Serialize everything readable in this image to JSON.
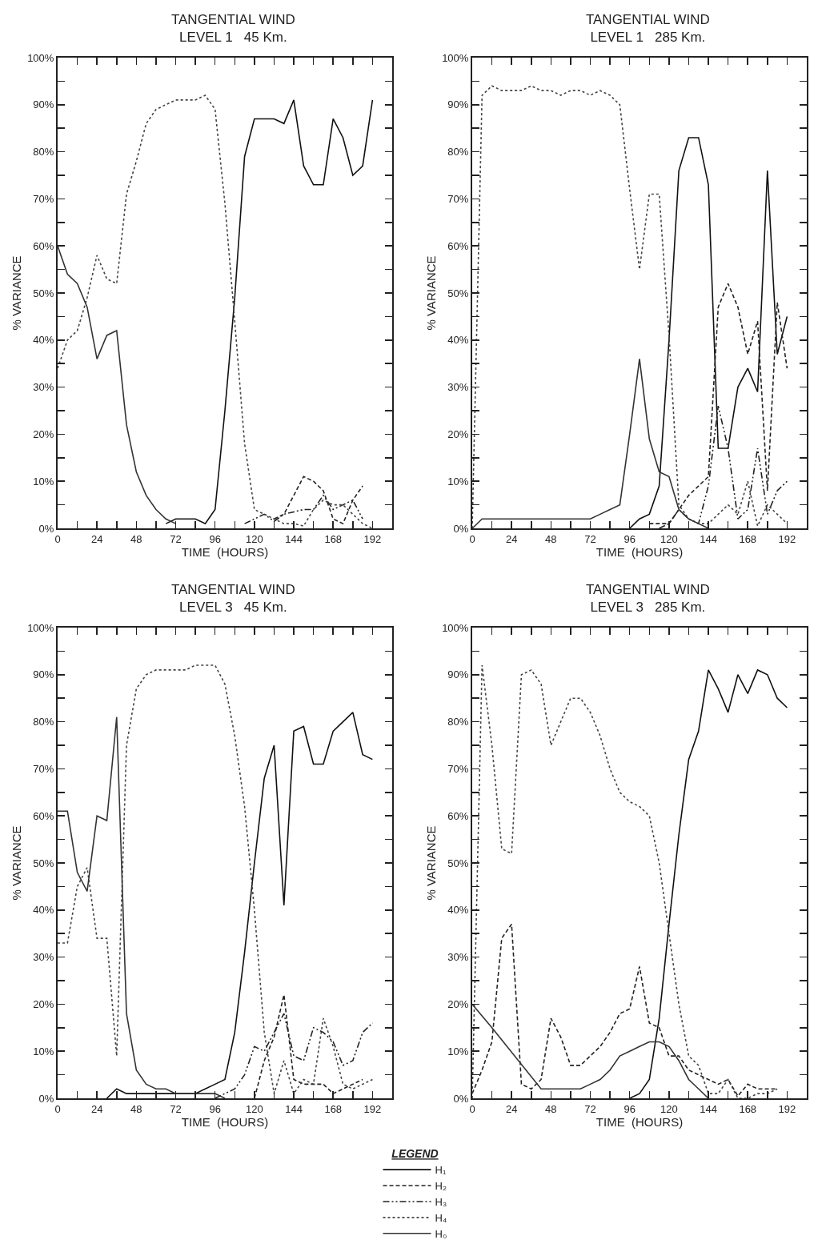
{
  "chart_data": [
    {
      "type": "line",
      "title": "TANGENTIAL WIND",
      "subtitle": "LEVEL 1   45 Km.",
      "xlabel": "TIME  (HOURS)",
      "ylabel": "% VARIANCE",
      "xlim": [
        0,
        204
      ],
      "ylim": [
        0,
        100
      ],
      "xticks": [
        0,
        {
          "value": 12,
          "label": null
        },
        24,
        {
          "value": 36,
          "label": null
        },
        48,
        {
          "value": 60,
          "label": null
        },
        72,
        {
          "value": 84,
          "label": null
        },
        96,
        {
          "value": 108,
          "label": null
        },
        120,
        {
          "value": 132,
          "label": null
        },
        144,
        {
          "value": 156,
          "label": null
        },
        168,
        {
          "value": 180,
          "label": null
        },
        192,
        {
          "value": 204,
          "label": null
        }
      ],
      "yticks": [
        {
          "value": 0,
          "label": "0%"
        },
        {
          "value": 5,
          "label": null
        },
        {
          "value": 10,
          "label": "10%"
        },
        {
          "value": 15,
          "label": null
        },
        {
          "value": 20,
          "label": "20%"
        },
        {
          "value": 25,
          "label": null
        },
        {
          "value": 30,
          "label": "30%"
        },
        {
          "value": 35,
          "label": null
        },
        {
          "value": 40,
          "label": "40%"
        },
        {
          "value": 45,
          "label": null
        },
        {
          "value": 50,
          "label": "50%"
        },
        {
          "value": 55,
          "label": null
        },
        {
          "value": 60,
          "label": "60%"
        },
        {
          "value": 65,
          "label": null
        },
        {
          "value": 70,
          "label": "70%"
        },
        {
          "value": 75,
          "label": null
        },
        {
          "value": 80,
          "label": "80%"
        },
        {
          "value": 85,
          "label": null
        },
        {
          "value": 90,
          "label": "90%"
        },
        {
          "value": 95,
          "label": null
        },
        {
          "value": 100,
          "label": "100%"
        }
      ],
      "series": [
        {
          "color": "#111111",
          "line_style": "solid",
          "x": [
            66,
            72,
            78,
            84,
            90,
            96,
            102,
            108,
            114,
            120,
            126,
            132,
            138,
            144,
            150,
            156,
            162,
            168,
            174,
            180,
            186,
            192
          ],
          "values": [
            1,
            2,
            2,
            2,
            1,
            4,
            25,
            49,
            79,
            87,
            87,
            87,
            86,
            91,
            77,
            73,
            73,
            87,
            83,
            75,
            77,
            91
          ]
        },
        {
          "color": "#222222",
          "line_style": "dashed",
          "x": [
            132,
            138,
            144,
            150,
            156,
            162,
            168,
            174,
            180,
            186
          ],
          "values": [
            2,
            3,
            7,
            11,
            10,
            8,
            2,
            1,
            6,
            9
          ]
        },
        {
          "color": "#222222",
          "line_style": "dashdot",
          "x": [
            114,
            120,
            126,
            132,
            138,
            144,
            150,
            156,
            162,
            168,
            174,
            180,
            186
          ],
          "values": [
            1,
            2,
            3,
            1.5,
            3,
            3.5,
            4,
            4,
            7,
            4,
            5,
            6,
            2
          ]
        },
        {
          "color": "#444444",
          "line_style": "dotted",
          "x": [
            0,
            6,
            12,
            18,
            24,
            30,
            36,
            42,
            48,
            54,
            60,
            66,
            72,
            78,
            84,
            90,
            96,
            102,
            108,
            114,
            120,
            126,
            132,
            138,
            144,
            150,
            156,
            162,
            168,
            174,
            180,
            186,
            192
          ],
          "values": [
            34,
            40,
            42,
            49,
            58,
            53,
            52,
            71,
            78,
            86,
            89,
            90,
            91,
            91,
            91,
            92,
            89,
            69,
            44,
            18,
            4,
            3,
            2,
            1,
            1,
            0.5,
            4,
            6,
            5,
            5,
            3,
            1,
            0
          ]
        },
        {
          "color": "#333333",
          "line_style": "solid",
          "x": [
            0,
            6,
            12,
            18,
            24,
            30,
            36,
            42,
            48,
            54,
            60,
            66,
            72
          ],
          "values": [
            60,
            54,
            52,
            47,
            36,
            41,
            42,
            22,
            12,
            7,
            4,
            2,
            1
          ]
        }
      ]
    },
    {
      "type": "line",
      "title": "TANGENTIAL WIND",
      "subtitle": "LEVEL 1   285 Km.",
      "xlabel": "TIME  (HOURS)",
      "ylabel": "% VARIANCE",
      "xlim": [
        0,
        204
      ],
      "ylim": [
        0,
        100
      ],
      "xticks": [
        0,
        {
          "value": 12,
          "label": null
        },
        24,
        {
          "value": 36,
          "label": null
        },
        48,
        {
          "value": 60,
          "label": null
        },
        72,
        {
          "value": 84,
          "label": null
        },
        96,
        {
          "value": 108,
          "label": null
        },
        120,
        {
          "value": 132,
          "label": null
        },
        144,
        {
          "value": 156,
          "label": null
        },
        168,
        {
          "value": 180,
          "label": null
        },
        192,
        {
          "value": 204,
          "label": null
        }
      ],
      "yticks": [
        {
          "value": 0,
          "label": "0%"
        },
        {
          "value": 5,
          "label": null
        },
        {
          "value": 10,
          "label": "10%"
        },
        {
          "value": 15,
          "label": null
        },
        {
          "value": 20,
          "label": "20%"
        },
        {
          "value": 25,
          "label": null
        },
        {
          "value": 30,
          "label": "30%"
        },
        {
          "value": 35,
          "label": null
        },
        {
          "value": 40,
          "label": "40%"
        },
        {
          "value": 45,
          "label": null
        },
        {
          "value": 50,
          "label": "50%"
        },
        {
          "value": 55,
          "label": null
        },
        {
          "value": 60,
          "label": "60%"
        },
        {
          "value": 65,
          "label": null
        },
        {
          "value": 70,
          "label": "70%"
        },
        {
          "value": 75,
          "label": null
        },
        {
          "value": 80,
          "label": "80%"
        },
        {
          "value": 85,
          "label": null
        },
        {
          "value": 90,
          "label": "90%"
        },
        {
          "value": 95,
          "label": null
        },
        {
          "value": 100,
          "label": "100%"
        }
      ],
      "series": [
        {
          "color": "#111111",
          "line_style": "solid",
          "x": [
            96,
            102,
            108,
            114,
            120,
            126,
            132,
            138,
            144,
            150,
            156,
            162,
            168,
            174,
            180,
            186,
            192
          ],
          "values": [
            0,
            2,
            3,
            9,
            40,
            76,
            83,
            83,
            73,
            17,
            17,
            30,
            34,
            29,
            76,
            37,
            45
          ]
        },
        {
          "color": "#222222",
          "line_style": "dashed",
          "x": [
            108,
            114,
            120,
            126,
            132,
            138,
            144,
            150,
            156,
            162,
            168,
            174,
            180,
            186,
            192
          ],
          "values": [
            1,
            1,
            1,
            4,
            7,
            9,
            11,
            47,
            52,
            47,
            37,
            44,
            8,
            48,
            34
          ]
        },
        {
          "color": "#222222",
          "line_style": "dashdot",
          "x": [
            114,
            120,
            126,
            132,
            138,
            144,
            150,
            156,
            162,
            168,
            174,
            180,
            186,
            192
          ],
          "values": [
            0,
            1,
            4,
            2,
            1,
            9,
            26,
            17,
            2,
            4,
            17,
            3,
            8,
            10
          ]
        },
        {
          "color": "#444444",
          "line_style": "dotted",
          "x": [
            0,
            6,
            12,
            18,
            24,
            30,
            36,
            42,
            48,
            54,
            60,
            66,
            72,
            78,
            84,
            90,
            96,
            102,
            108,
            114,
            120,
            126,
            132,
            138,
            144,
            150,
            156,
            162,
            168,
            174,
            180,
            186,
            192
          ],
          "values": [
            0,
            92,
            94,
            93,
            93,
            93,
            94,
            93,
            93,
            92,
            93,
            93,
            92,
            93,
            92,
            90,
            72,
            55,
            71,
            71,
            41,
            5,
            2,
            1,
            1,
            3,
            5,
            3,
            10,
            0.5,
            5,
            3,
            1
          ]
        },
        {
          "color": "#333333",
          "line_style": "solid",
          "x": [
            0,
            6,
            12,
            18,
            24,
            30,
            36,
            42,
            48,
            54,
            60,
            66,
            72,
            78,
            84,
            90,
            96,
            102,
            108,
            114,
            120,
            126,
            132,
            138,
            144
          ],
          "values": [
            0,
            2,
            2,
            2,
            2,
            2,
            2,
            2,
            2,
            2,
            2,
            2,
            2,
            3,
            4,
            5,
            20,
            36,
            19,
            12,
            11,
            4,
            2,
            1,
            0
          ]
        }
      ]
    },
    {
      "type": "line",
      "title": "TANGENTIAL WIND",
      "subtitle": "LEVEL 3   45 Km.",
      "xlabel": "TIME  (HOURS)",
      "ylabel": "% VARIANCE",
      "xlim": [
        0,
        204
      ],
      "ylim": [
        0,
        100
      ],
      "xticks": [
        0,
        {
          "value": 12,
          "label": null
        },
        24,
        {
          "value": 36,
          "label": null
        },
        48,
        {
          "value": 60,
          "label": null
        },
        72,
        {
          "value": 84,
          "label": null
        },
        96,
        {
          "value": 108,
          "label": null
        },
        120,
        {
          "value": 132,
          "label": null
        },
        144,
        {
          "value": 156,
          "label": null
        },
        168,
        {
          "value": 180,
          "label": null
        },
        192,
        {
          "value": 204,
          "label": null
        }
      ],
      "yticks": [
        {
          "value": 0,
          "label": "0%"
        },
        {
          "value": 5,
          "label": null
        },
        {
          "value": 10,
          "label": "10%"
        },
        {
          "value": 15,
          "label": null
        },
        {
          "value": 20,
          "label": "20%"
        },
        {
          "value": 25,
          "label": null
        },
        {
          "value": 30,
          "label": "30%"
        },
        {
          "value": 35,
          "label": null
        },
        {
          "value": 40,
          "label": "40%"
        },
        {
          "value": 45,
          "label": null
        },
        {
          "value": 50,
          "label": "50%"
        },
        {
          "value": 55,
          "label": null
        },
        {
          "value": 60,
          "label": "60%"
        },
        {
          "value": 65,
          "label": null
        },
        {
          "value": 70,
          "label": "70%"
        },
        {
          "value": 75,
          "label": null
        },
        {
          "value": 80,
          "label": "80%"
        },
        {
          "value": 85,
          "label": null
        },
        {
          "value": 90,
          "label": "90%"
        },
        {
          "value": 95,
          "label": null
        },
        {
          "value": 100,
          "label": "100%"
        }
      ],
      "series": [
        {
          "color": "#111111",
          "line_style": "solid",
          "x": [
            30,
            36,
            42,
            48,
            54,
            60,
            66,
            72,
            78,
            84,
            90,
            96,
            102,
            108,
            114,
            120,
            126,
            132,
            138,
            144,
            150,
            156,
            162,
            168,
            174,
            180,
            186,
            192
          ],
          "values": [
            0,
            2,
            1,
            1,
            1,
            1,
            1,
            1,
            1,
            1,
            2,
            3,
            4,
            14,
            31,
            50,
            68,
            75,
            41,
            78,
            79,
            71,
            71,
            78,
            80,
            82,
            73,
            72
          ]
        },
        {
          "color": "#222222",
          "line_style": "dashed",
          "x": [
            120,
            126,
            132,
            138,
            144,
            150,
            156,
            162,
            168,
            174,
            180,
            186
          ],
          "values": [
            0,
            8,
            13,
            22,
            4,
            3,
            3,
            3,
            1,
            2,
            3,
            4
          ]
        },
        {
          "color": "#222222",
          "line_style": "dashdot",
          "x": [
            96,
            102,
            108,
            114,
            120,
            126,
            132,
            138,
            144,
            150,
            156,
            162,
            168,
            174,
            180,
            186,
            192
          ],
          "values": [
            0,
            1,
            2,
            5,
            11,
            10,
            14,
            18,
            9,
            8,
            15,
            14,
            12,
            7,
            8,
            14,
            16
          ]
        },
        {
          "color": "#444444",
          "line_style": "dotted",
          "x": [
            0,
            6,
            12,
            18,
            24,
            30,
            36,
            42,
            48,
            54,
            60,
            66,
            72,
            78,
            84,
            90,
            96,
            102,
            108,
            114,
            120,
            126,
            132,
            138,
            144,
            150,
            156,
            162,
            168,
            174,
            180,
            186,
            192
          ],
          "values": [
            33,
            33,
            45,
            49,
            34,
            34,
            9,
            75,
            87,
            90,
            91,
            91,
            91,
            91,
            92,
            92,
            92,
            88,
            77,
            62,
            40,
            14,
            1,
            8,
            1,
            4,
            3,
            17,
            11,
            3,
            2,
            3,
            4
          ]
        },
        {
          "color": "#333333",
          "line_style": "solid",
          "x": [
            0,
            6,
            12,
            18,
            24,
            30,
            36,
            42,
            48,
            54,
            60,
            66,
            72,
            78,
            84,
            90,
            96,
            102
          ],
          "values": [
            61,
            61,
            48,
            44,
            60,
            59,
            81,
            18,
            6,
            3,
            2,
            2,
            1,
            1,
            1,
            1,
            1,
            0
          ]
        }
      ]
    },
    {
      "type": "line",
      "title": "TANGENTIAL WIND",
      "subtitle": "LEVEL 3   285 Km.",
      "xlabel": "TIME  (HOURS)",
      "ylabel": "% VARIANCE",
      "xlim": [
        0,
        204
      ],
      "ylim": [
        0,
        100
      ],
      "legend": "bottom",
      "legend_title": "LEGEND",
      "xticks": [
        0,
        {
          "value": 12,
          "label": null
        },
        24,
        {
          "value": 36,
          "label": null
        },
        48,
        {
          "value": 60,
          "label": null
        },
        72,
        {
          "value": 84,
          "label": null
        },
        96,
        {
          "value": 108,
          "label": null
        },
        120,
        {
          "value": 132,
          "label": null
        },
        144,
        {
          "value": 156,
          "label": null
        },
        168,
        {
          "value": 180,
          "label": null
        },
        192,
        {
          "value": 204,
          "label": null
        }
      ],
      "yticks": [
        {
          "value": 0,
          "label": "0%"
        },
        {
          "value": 5,
          "label": null
        },
        {
          "value": 10,
          "label": "10%"
        },
        {
          "value": 15,
          "label": null
        },
        {
          "value": 20,
          "label": "20%"
        },
        {
          "value": 25,
          "label": null
        },
        {
          "value": 30,
          "label": "30%"
        },
        {
          "value": 35,
          "label": null
        },
        {
          "value": 40,
          "label": "40%"
        },
        {
          "value": 45,
          "label": null
        },
        {
          "value": 50,
          "label": "50%"
        },
        {
          "value": 55,
          "label": null
        },
        {
          "value": 60,
          "label": "60%"
        },
        {
          "value": 65,
          "label": null
        },
        {
          "value": 70,
          "label": "70%"
        },
        {
          "value": 75,
          "label": null
        },
        {
          "value": 80,
          "label": "80%"
        },
        {
          "value": 85,
          "label": null
        },
        {
          "value": 90,
          "label": "90%"
        },
        {
          "value": 95,
          "label": null
        },
        {
          "value": 100,
          "label": "100%"
        }
      ],
      "series": [
        {
          "name": "H₁",
          "color": "#111111",
          "line_style": "solid",
          "x": [
            96,
            102,
            108,
            114,
            120,
            126,
            132,
            138,
            144,
            150,
            156,
            162,
            168,
            174,
            180,
            186,
            192
          ],
          "values": [
            0,
            1,
            4,
            17,
            37,
            56,
            72,
            78,
            91,
            87,
            82,
            90,
            86,
            91,
            90,
            85,
            83
          ]
        },
        {
          "name": "H₂",
          "color": "#222222",
          "line_style": "dashed",
          "x": [
            0,
            6,
            12,
            18,
            24,
            30,
            36,
            42,
            48,
            54,
            60,
            66,
            72,
            78,
            84,
            90,
            96,
            102,
            108,
            114,
            120,
            126,
            132,
            138,
            144,
            150,
            156,
            162,
            168,
            174,
            180,
            186
          ],
          "values": [
            1,
            6,
            12,
            34,
            37,
            3,
            2,
            4,
            17,
            13,
            7,
            7,
            9,
            11,
            14,
            18,
            19,
            28,
            16,
            15,
            9,
            9,
            6,
            5,
            4,
            3,
            4,
            0.5,
            3,
            2,
            2,
            2
          ]
        },
        {
          "name": "H₃",
          "color": "#222222",
          "line_style": "dashdot",
          "values": [
            null
          ]
        },
        {
          "name": "H₄",
          "color": "#444444",
          "line_style": "dotted",
          "x": [
            0,
            6,
            12,
            18,
            24,
            30,
            36,
            42,
            48,
            54,
            60,
            66,
            72,
            78,
            84,
            90,
            96,
            102,
            108,
            114,
            120,
            126,
            132,
            138,
            144,
            150,
            156,
            162,
            168,
            174,
            180,
            186
          ],
          "values": [
            0,
            92,
            75,
            53,
            52,
            90,
            91,
            88,
            75,
            80,
            85,
            85,
            82,
            77,
            70,
            65,
            63,
            62,
            60,
            50,
            35,
            20,
            9,
            7,
            1,
            1,
            4,
            0,
            0,
            1,
            1,
            2
          ]
        },
        {
          "name": "H₀",
          "color": "#333333",
          "line_style": "solid",
          "x": [
            0,
            12,
            42,
            66,
            72,
            78,
            84,
            90,
            96,
            102,
            108,
            114,
            120,
            126,
            132,
            138,
            144
          ],
          "values": [
            20,
            15,
            2,
            2,
            3,
            4,
            6,
            9,
            10,
            11,
            12,
            12,
            11,
            8,
            4,
            2,
            0
          ]
        }
      ]
    }
  ]
}
